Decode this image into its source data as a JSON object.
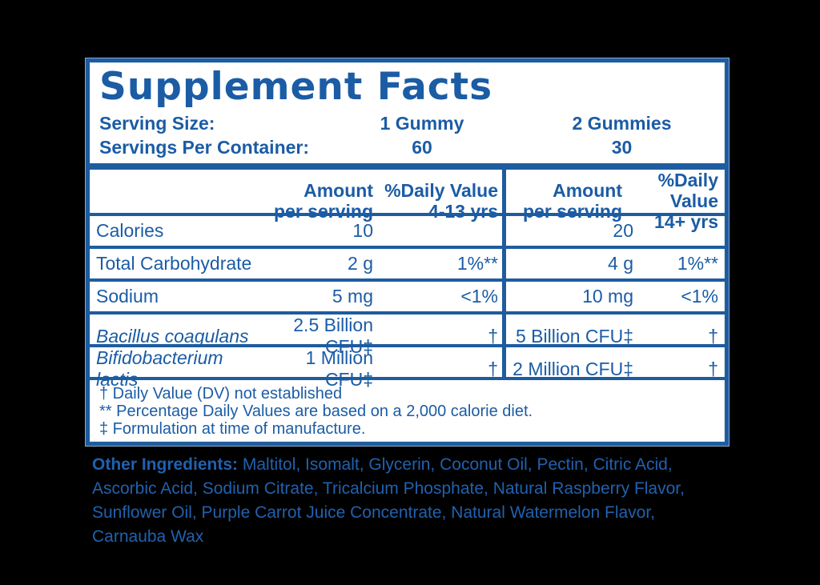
{
  "title": "Supplement Facts",
  "serving": {
    "rows": [
      {
        "label": "Serving Size:",
        "col1": "1 Gummy",
        "col2": "2 Gummies"
      },
      {
        "label": "Servings Per Container:",
        "col1": "60",
        "col2": "30"
      }
    ]
  },
  "table": {
    "head": {
      "amount1": "Amount\nper serving",
      "dv1": "%Daily Value\n4-13 yrs",
      "amount2": "Amount\nper serving",
      "dv2": "%Daily Value\n14+ yrs"
    },
    "rows": [
      {
        "name": "Calories",
        "amt1": "10",
        "dv1": "",
        "amt2": "20",
        "dv2": ""
      },
      {
        "name": "Total Carbohydrate",
        "amt1": "2 g",
        "dv1": "1%**",
        "amt2": "4 g",
        "dv2": "1%**"
      },
      {
        "name": "Sodium",
        "amt1": "5 mg",
        "dv1": "<1%",
        "amt2": "10 mg",
        "dv2": "<1%"
      },
      {
        "name": "Bacillus coagulans",
        "amt1": "2.5 Billion CFU‡",
        "dv1": "†",
        "amt2": "5 Billion CFU‡",
        "dv2": "†"
      },
      {
        "name": "Bifidobacterium lactis",
        "amt1": "1 Million CFU‡",
        "dv1": "†",
        "amt2": "2 Million CFU‡",
        "dv2": "†"
      }
    ]
  },
  "footnotes": [
    "† Daily Value (DV) not established",
    "** Percentage Daily Values are based on a 2,000 calorie diet.",
    "‡ Formulation at time of manufacture."
  ],
  "other_ingredients": {
    "label": "Other Ingredients:",
    "lines": [
      " Maltitol, Isomalt, Glycerin, Coconut Oil, Pectin, Citric Acid,",
      "Ascorbic Acid, Sodium Citrate, Tricalcium Phosphate, Natural Raspberry Flavor,",
      "Sunflower Oil, Purple Carrot Juice Concentrate, Natural Watermelon Flavor,",
      "Carnauba Wax"
    ]
  },
  "colors": {
    "brand_blue": "#1B5CA5",
    "border_blue": "#1E5C9F",
    "background": "#000000",
    "panel": "#FFFFFF"
  }
}
